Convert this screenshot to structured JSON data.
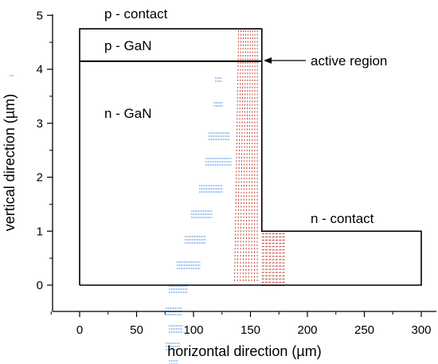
{
  "labels": {
    "p_contact": "p - contact",
    "p_gan": "p - GaN",
    "n_gan": "n - GaN",
    "active_region": "active region",
    "n_contact": "n - contact"
  },
  "chart_data": {
    "type": "diagram",
    "xlabel": "horizontal direction (µm)",
    "ylabel": "vertical direction (µm)",
    "xlim": [
      -30,
      310
    ],
    "ylim": [
      -0.5,
      5.0
    ],
    "xticks": [
      0,
      50,
      100,
      150,
      200,
      250,
      300
    ],
    "yticks": [
      0,
      1,
      2,
      3,
      4,
      5
    ],
    "xtick_labels": [
      "0",
      "50",
      "100",
      "150",
      "200",
      "250",
      "300"
    ],
    "ytick_labels": [
      "0",
      "1",
      "2",
      "3",
      "4",
      "5"
    ],
    "device_outline": [
      [
        0,
        0
      ],
      [
        300,
        0
      ],
      [
        300,
        1
      ],
      [
        160,
        1
      ],
      [
        160,
        4.75
      ],
      [
        0,
        4.75
      ],
      [
        0,
        0
      ]
    ],
    "active_region_y": 4.15,
    "current_vector_color": "#c0392b",
    "stray_artifact_color": "#9ec3ee"
  }
}
